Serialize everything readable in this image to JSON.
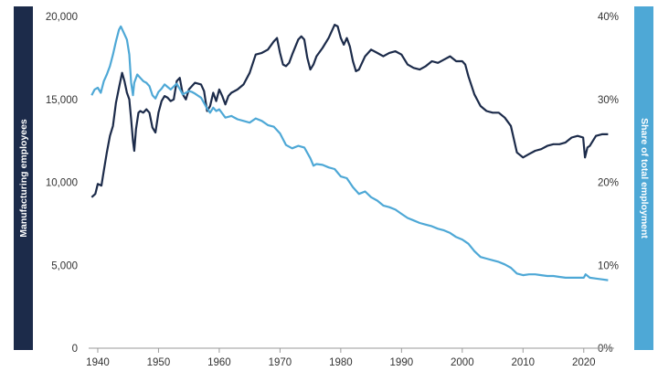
{
  "chart_data": {
    "type": "line",
    "ylabel_left": "Manufacturing employees",
    "ylabel_right": "Share of total employment",
    "xlim": [
      1938.5,
      2025
    ],
    "ylim_left": [
      0,
      20000
    ],
    "ylim_right": [
      0,
      40
    ],
    "x_ticks": [
      "1940",
      "1950",
      "1960",
      "1970",
      "1980",
      "1990",
      "2000",
      "2010",
      "2020"
    ],
    "y_left_ticks": [
      "0",
      "5,000",
      "10,000",
      "15,000",
      "20,000"
    ],
    "y_right_ticks": [
      "0%",
      "10%",
      "20%",
      "30%",
      "40%"
    ],
    "grid": false,
    "series": [
      {
        "axis": "left",
        "color": "#1c2b4a",
        "points": [
          [
            1939,
            9100
          ],
          [
            1939.6,
            9300
          ],
          [
            1940,
            9900
          ],
          [
            1940.6,
            9800
          ],
          [
            1941,
            10700
          ],
          [
            1941.5,
            11800
          ],
          [
            1942,
            12800
          ],
          [
            1942.5,
            13400
          ],
          [
            1943,
            14800
          ],
          [
            1943.5,
            15700
          ],
          [
            1944,
            16600
          ],
          [
            1944.4,
            16100
          ],
          [
            1944.8,
            15400
          ],
          [
            1945.2,
            15000
          ],
          [
            1945.5,
            13800
          ],
          [
            1945.8,
            12500
          ],
          [
            1946,
            11900
          ],
          [
            1946.3,
            13200
          ],
          [
            1946.7,
            14200
          ],
          [
            1947,
            14300
          ],
          [
            1947.5,
            14200
          ],
          [
            1948,
            14400
          ],
          [
            1948.5,
            14200
          ],
          [
            1949,
            13300
          ],
          [
            1949.5,
            13000
          ],
          [
            1950,
            14200
          ],
          [
            1950.5,
            14900
          ],
          [
            1951,
            15200
          ],
          [
            1951.5,
            15100
          ],
          [
            1952,
            14900
          ],
          [
            1952.5,
            15000
          ],
          [
            1953,
            16100
          ],
          [
            1953.5,
            16300
          ],
          [
            1954,
            15300
          ],
          [
            1954.5,
            15000
          ],
          [
            1955,
            15600
          ],
          [
            1955.5,
            15800
          ],
          [
            1956,
            16000
          ],
          [
            1957,
            15900
          ],
          [
            1957.5,
            15500
          ],
          [
            1958,
            14300
          ],
          [
            1958.5,
            14600
          ],
          [
            1959,
            15400
          ],
          [
            1959.5,
            14900
          ],
          [
            1960,
            15600
          ],
          [
            1960.5,
            15200
          ],
          [
            1961,
            14700
          ],
          [
            1961.5,
            15200
          ],
          [
            1962,
            15400
          ],
          [
            1963,
            15600
          ],
          [
            1964,
            15900
          ],
          [
            1965,
            16600
          ],
          [
            1966,
            17700
          ],
          [
            1967,
            17800
          ],
          [
            1968,
            18000
          ],
          [
            1969,
            18500
          ],
          [
            1969.5,
            18700
          ],
          [
            1970,
            17800
          ],
          [
            1970.5,
            17100
          ],
          [
            1971,
            17000
          ],
          [
            1971.5,
            17200
          ],
          [
            1972,
            17700
          ],
          [
            1973,
            18600
          ],
          [
            1973.5,
            18800
          ],
          [
            1974,
            18600
          ],
          [
            1974.5,
            17500
          ],
          [
            1975,
            16800
          ],
          [
            1975.5,
            17100
          ],
          [
            1976,
            17600
          ],
          [
            1977,
            18100
          ],
          [
            1978,
            18700
          ],
          [
            1979,
            19500
          ],
          [
            1979.5,
            19400
          ],
          [
            1980,
            18700
          ],
          [
            1980.5,
            18300
          ],
          [
            1981,
            18700
          ],
          [
            1981.5,
            18200
          ],
          [
            1982,
            17300
          ],
          [
            1982.5,
            16700
          ],
          [
            1983,
            16800
          ],
          [
            1984,
            17600
          ],
          [
            1985,
            18000
          ],
          [
            1986,
            17800
          ],
          [
            1987,
            17600
          ],
          [
            1988,
            17800
          ],
          [
            1989,
            17900
          ],
          [
            1990,
            17700
          ],
          [
            1991,
            17100
          ],
          [
            1992,
            16900
          ],
          [
            1993,
            16800
          ],
          [
            1994,
            17000
          ],
          [
            1995,
            17300
          ],
          [
            1996,
            17200
          ],
          [
            1997,
            17400
          ],
          [
            1998,
            17600
          ],
          [
            1999,
            17300
          ],
          [
            2000,
            17300
          ],
          [
            2000.5,
            17100
          ],
          [
            2001,
            16400
          ],
          [
            2002,
            15300
          ],
          [
            2003,
            14600
          ],
          [
            2004,
            14300
          ],
          [
            2005,
            14200
          ],
          [
            2006,
            14200
          ],
          [
            2007,
            13900
          ],
          [
            2008,
            13400
          ],
          [
            2009,
            11800
          ],
          [
            2010,
            11500
          ],
          [
            2011,
            11700
          ],
          [
            2012,
            11900
          ],
          [
            2013,
            12000
          ],
          [
            2014,
            12200
          ],
          [
            2015,
            12300
          ],
          [
            2016,
            12300
          ],
          [
            2017,
            12400
          ],
          [
            2018,
            12700
          ],
          [
            2019,
            12800
          ],
          [
            2019.9,
            12700
          ],
          [
            2020.2,
            11500
          ],
          [
            2020.6,
            12100
          ],
          [
            2021,
            12200
          ],
          [
            2022,
            12800
          ],
          [
            2023,
            12900
          ],
          [
            2024,
            12900
          ]
        ]
      },
      {
        "axis": "right",
        "color": "#4ea8d6",
        "points": [
          [
            1939,
            30.5
          ],
          [
            1939.5,
            31.2
          ],
          [
            1940,
            31.4
          ],
          [
            1940.5,
            30.8
          ],
          [
            1941,
            32.2
          ],
          [
            1941.5,
            33.0
          ],
          [
            1942,
            34.0
          ],
          [
            1942.5,
            35.4
          ],
          [
            1943,
            37.0
          ],
          [
            1943.5,
            38.4
          ],
          [
            1943.8,
            38.8
          ],
          [
            1944.3,
            38.0
          ],
          [
            1944.8,
            37.2
          ],
          [
            1945.2,
            35.4
          ],
          [
            1945.5,
            32.0
          ],
          [
            1945.8,
            30.5
          ],
          [
            1946,
            32.0
          ],
          [
            1946.5,
            33.0
          ],
          [
            1947,
            32.6
          ],
          [
            1947.5,
            32.2
          ],
          [
            1948,
            32.0
          ],
          [
            1948.5,
            31.6
          ],
          [
            1949,
            30.5
          ],
          [
            1949.5,
            30.1
          ],
          [
            1950,
            30.9
          ],
          [
            1950.5,
            31.3
          ],
          [
            1951,
            31.8
          ],
          [
            1952,
            31.2
          ],
          [
            1953,
            31.9
          ],
          [
            1954,
            30.6
          ],
          [
            1955,
            31.0
          ],
          [
            1955.5,
            30.9
          ],
          [
            1956,
            30.7
          ],
          [
            1957,
            30.2
          ],
          [
            1958,
            28.9
          ],
          [
            1958.5,
            28.4
          ],
          [
            1959,
            29.0
          ],
          [
            1959.5,
            28.6
          ],
          [
            1960,
            28.8
          ],
          [
            1961,
            27.8
          ],
          [
            1962,
            28.0
          ],
          [
            1963,
            27.6
          ],
          [
            1964,
            27.4
          ],
          [
            1965,
            27.2
          ],
          [
            1966,
            27.7
          ],
          [
            1967,
            27.4
          ],
          [
            1968,
            26.9
          ],
          [
            1969,
            26.7
          ],
          [
            1970,
            25.9
          ],
          [
            1971,
            24.5
          ],
          [
            1972,
            24.1
          ],
          [
            1973,
            24.4
          ],
          [
            1974,
            24.2
          ],
          [
            1975,
            22.9
          ],
          [
            1975.5,
            22.0
          ],
          [
            1976,
            22.2
          ],
          [
            1977,
            22.1
          ],
          [
            1978,
            21.8
          ],
          [
            1979,
            21.6
          ],
          [
            1980,
            20.7
          ],
          [
            1981,
            20.5
          ],
          [
            1982,
            19.4
          ],
          [
            1983,
            18.6
          ],
          [
            1984,
            18.9
          ],
          [
            1985,
            18.2
          ],
          [
            1986,
            17.8
          ],
          [
            1987,
            17.2
          ],
          [
            1988,
            17.0
          ],
          [
            1989,
            16.7
          ],
          [
            1990,
            16.2
          ],
          [
            1991,
            15.7
          ],
          [
            1992,
            15.4
          ],
          [
            1993,
            15.1
          ],
          [
            1994,
            14.9
          ],
          [
            1995,
            14.7
          ],
          [
            1996,
            14.4
          ],
          [
            1997,
            14.2
          ],
          [
            1998,
            13.9
          ],
          [
            1999,
            13.4
          ],
          [
            2000,
            13.1
          ],
          [
            2001,
            12.6
          ],
          [
            2002,
            11.7
          ],
          [
            2003,
            11.0
          ],
          [
            2004,
            10.8
          ],
          [
            2005,
            10.6
          ],
          [
            2006,
            10.4
          ],
          [
            2007,
            10.1
          ],
          [
            2008,
            9.7
          ],
          [
            2009,
            9.0
          ],
          [
            2010,
            8.8
          ],
          [
            2011,
            8.9
          ],
          [
            2012,
            8.9
          ],
          [
            2013,
            8.8
          ],
          [
            2014,
            8.7
          ],
          [
            2015,
            8.7
          ],
          [
            2016,
            8.6
          ],
          [
            2017,
            8.5
          ],
          [
            2018,
            8.5
          ],
          [
            2019,
            8.5
          ],
          [
            2020,
            8.5
          ],
          [
            2020.3,
            8.9
          ],
          [
            2021,
            8.5
          ],
          [
            2022,
            8.4
          ],
          [
            2023,
            8.3
          ],
          [
            2024,
            8.2
          ]
        ]
      }
    ]
  }
}
